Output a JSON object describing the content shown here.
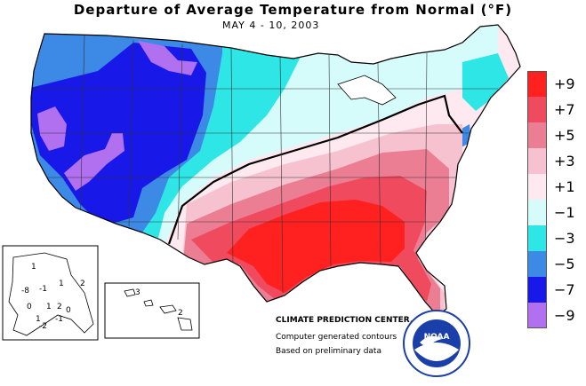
{
  "title": "Departure of Average Temperature from Normal (°F)",
  "subtitle": "MAY 4 - 10, 2003",
  "legend": [
    {
      "label": "+9",
      "color": "#ff2020"
    },
    {
      "label": "+7",
      "color": "#f04a5e"
    },
    {
      "label": "+5",
      "color": "#ec7e94"
    },
    {
      "label": "+3",
      "color": "#f7c2d0"
    },
    {
      "label": "+1",
      "color": "#fde9ef"
    },
    {
      "label": "−1",
      "color": "#d6fbfb"
    },
    {
      "label": "−3",
      "color": "#2ee6e6"
    },
    {
      "label": "−5",
      "color": "#3c8ae6"
    },
    {
      "label": "−7",
      "color": "#1818e8"
    },
    {
      "label": "−9",
      "color": "#b070f0"
    }
  ],
  "credits": {
    "center": "CLIMATE PREDICTION CENTER, NOAA",
    "line1": "Computer generated contours",
    "line2": "Based on preliminary data"
  },
  "logo_text": "NOAA",
  "alaska_labels": [
    "1",
    "-8",
    "-1",
    "1",
    "2",
    "0",
    "1",
    "2",
    "0",
    "1",
    "-2",
    "-1"
  ],
  "hawaii_labels": [
    "3",
    "2"
  ]
}
